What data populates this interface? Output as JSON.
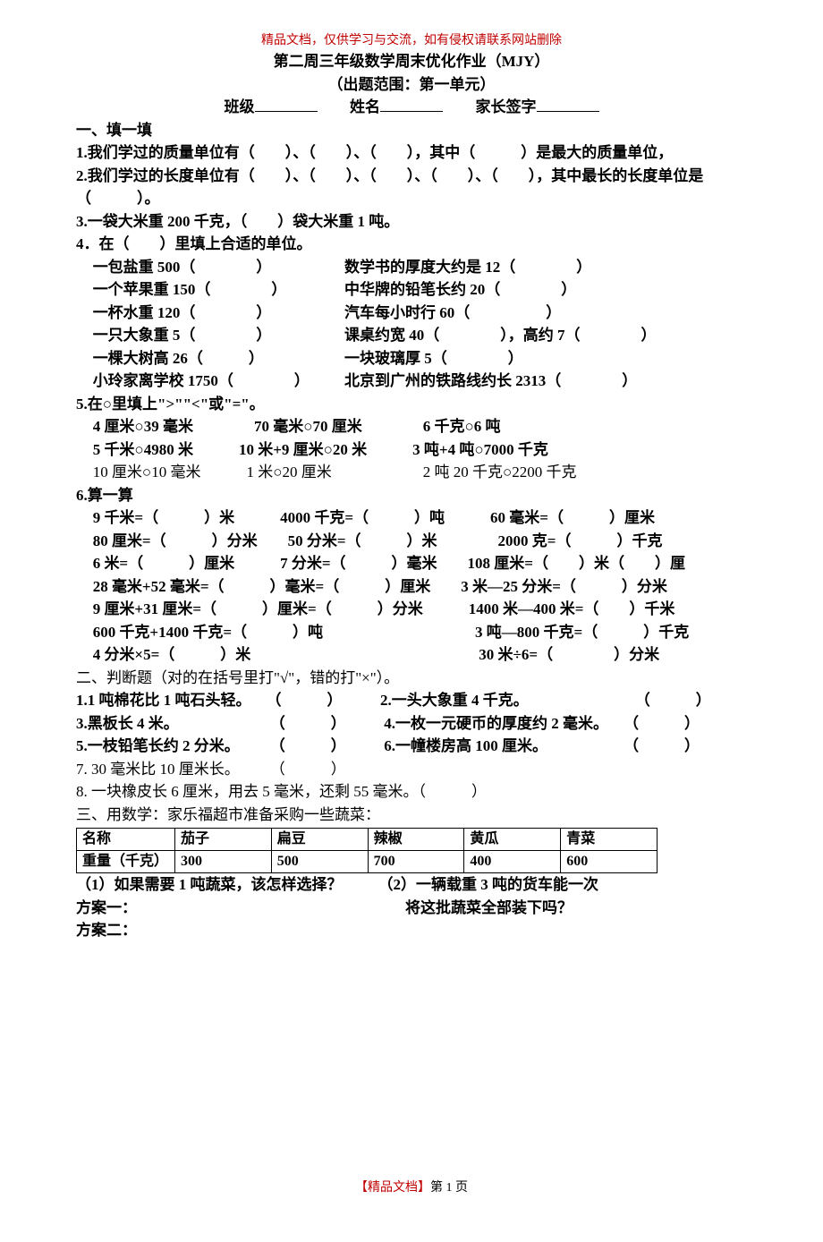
{
  "headerNote": "精品文档，仅供学习与交流，如有侵权请联系网站删除",
  "title": "第二周三年级数学周末优化作业（MJY）",
  "subtitle": "（出题范围：第一单元）",
  "info": {
    "classLabel": "班级",
    "nameLabel": "姓名",
    "signLabel": "家长签字"
  },
  "s1": {
    "head": "一、填一填",
    "q1": "1.我们学过的质量单位有（　　）、（　　）、（　　），其中（　　　）是最大的质量单位，",
    "q2": "2.我们学过的长度单位有（　　）、（　　）、（　　）、（　　）、（　　），其中最长的长度单位是（　　　）。",
    "q3": "3.一袋大米重 200 千克，（　　）袋大米重 1 吨。",
    "q4head": "4．在（　　）里填上合适的单位。",
    "q4rows": [
      {
        "l": "一包盐重 500（　　　　）",
        "r": "数学书的厚度大约是 12（　　　　）"
      },
      {
        "l": "一个苹果重 150（　　　　）",
        "r": "中华牌的铅笔长约 20（　　　　）"
      },
      {
        "l": "一杯水重 120（　　　　）",
        "r": "汽车每小时行 60（　　　　　）"
      },
      {
        "l": "一只大象重 5（　　　　）",
        "r": "课桌约宽 40（　　　　），高约 7（　　　　）"
      },
      {
        "l": "一棵大树高 26（　　　）",
        "r": "一块玻璃厚 5（　　　　）"
      },
      {
        "l": "小玲家离学校 1750（　　　　）",
        "r": "北京到广州的铁路线约长 2313（　　　　）"
      }
    ],
    "q5head": "5.在○里填上\">\"\"<\"或\"=\"。",
    "q5rows": [
      "4 厘米○39 毫米　　　　70 毫米○70 厘米　　　　6 千克○6 吨",
      "5 千米○4980 米　　　10 米+9 厘米○20 米　　　3 吨+4 吨○7000 千克",
      "10 厘米○10 毫米　　　1 米○20 厘米　　　　　　2 吨 20 千克○2200 千克"
    ],
    "q6head": "6.算一算",
    "q6rows": [
      "9 千米=（　　　）米　　　4000 千克=（　　　）吨　　　60 毫米=（　　　）厘米",
      "80 厘米=（　　　）分米　　50 分米=（　　　）米　　　　2000 克=（　　　）千克",
      "6 米=（　　　）厘米　　　7 分米=（　　　）毫米　　108 厘米=（　　）米（　　）厘",
      "28 毫米+52 毫米=（　　　）毫米=（　　　）厘米　　3 米—25 分米=（　　　）分米",
      "9 厘米+31 厘米=（　　　）厘米=（　　　）分米　　　1400 米—400 米=（　　）千米",
      "600 千克+1400 千克=（　　　）吨　　　　　　　　　　3 吨—800 千克=（　　　）千克",
      "4 分米×5=（　　　）米　　　　　　　　　　　　　　　30 米÷6=（　　　　）分米"
    ]
  },
  "s2": {
    "head": "二、判断题（对的在括号里打\"√\"，错的打\"×\"）。",
    "rows": [
      "1.1 吨棉花比 1 吨石头轻。　　（　　　）　　　2.一头大象重 4 千克。　　　　　　　　（　　　）",
      "3.黑板长 4 米。　　　　　　　（　　　）　　　4.一枚一元硬币的厚度约 2 毫米。　　（　　　）",
      "5.一枝铅笔长约 2 分米。　　　（　　　）　　　6.一幢楼房高 100 厘米。　　　　　　（　　　）",
      "7. 30 毫米比 10 厘米长。　　　（　　　）",
      "8. 一块橡皮长 6 厘米，用去 5 毫米，还剩 55 毫米。（　　　）"
    ]
  },
  "s3": {
    "head": "三、用数学：家乐福超市准备采购一些蔬菜：",
    "table": {
      "headers": [
        "名称",
        "茄子",
        "扁豆",
        "辣椒",
        "黄瓜",
        "青菜"
      ],
      "rowLabel": "重量（千克）",
      "values": [
        "300",
        "500",
        "700",
        "400",
        "600"
      ]
    },
    "q1": "（1）如果需要  1 吨蔬菜，该怎样选择？",
    "q2a": "（2）一辆载重  3 吨的货车能一次",
    "q2b": "将这批蔬菜全部装下吗？",
    "p1": "方案一：",
    "p2": "方案二："
  },
  "footer": {
    "red": "【精品文档】",
    "page": "第  1  页"
  }
}
